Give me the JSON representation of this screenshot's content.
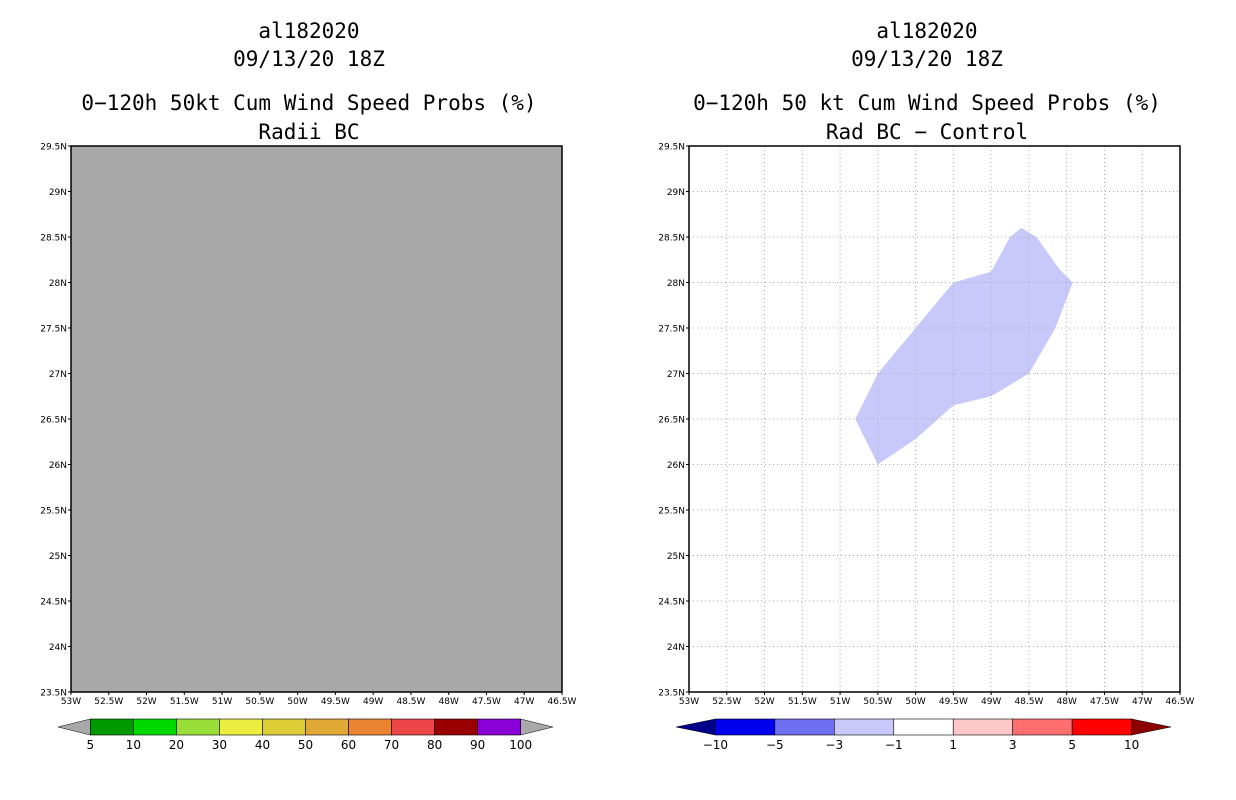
{
  "left_panel": {
    "title_storm": "al182020",
    "title_date": "09/13/20 18Z",
    "title_product": "0−120h 50kt Cum Wind Speed Probs (%)",
    "title_sub": "Radii BC",
    "y_ticks": [
      "29.5N",
      "29N",
      "28.5N",
      "28N",
      "27.5N",
      "27N",
      "26.5N",
      "26N",
      "25.5N",
      "25N",
      "24.5N",
      "24N",
      "23.5N"
    ],
    "x_ticks": [
      "53W",
      "52.5W",
      "52W",
      "51.5W",
      "51W",
      "50.5W",
      "50W",
      "49.5W",
      "49W",
      "48.5W",
      "48W",
      "47.5W",
      "47W",
      "46.5W"
    ],
    "plot_color": "#a9a9a9",
    "legend": {
      "colors": [
        "#009a00",
        "#00d900",
        "#9ade3a",
        "#eded40",
        "#dccc35",
        "#e0a835",
        "#ec8330",
        "#ee4548",
        "#9b0000",
        "#8a00d8"
      ],
      "labels": [
        "5",
        "10",
        "20",
        "30",
        "40",
        "50",
        "60",
        "70",
        "80",
        "90",
        "100"
      ],
      "low_color": "#a9a9a9",
      "high_color": "#a9a9a9"
    }
  },
  "right_panel": {
    "title_storm": "al182020",
    "title_date": "09/13/20 18Z",
    "title_product": "0−120h 50 kt Cum Wind Speed Probs (%)",
    "title_sub": "Rad BC − Control",
    "y_ticks": [
      "29.5N",
      "29N",
      "28.5N",
      "28N",
      "27.5N",
      "27N",
      "26.5N",
      "26N",
      "25.5N",
      "25N",
      "24.5N",
      "24N",
      "23.5N"
    ],
    "x_ticks": [
      "53W",
      "52.5W",
      "52W",
      "51.5W",
      "51W",
      "50.5W",
      "50W",
      "49.5W",
      "49W",
      "48.5W",
      "48W",
      "47.5W",
      "47W",
      "46.5W"
    ],
    "region": {
      "color": "#c8c8fa",
      "points": [
        [
          -50.8,
          26.5
        ],
        [
          -50.5,
          27.0
        ],
        [
          -50.0,
          27.5
        ],
        [
          -49.5,
          28.0
        ],
        [
          -49.0,
          28.12
        ],
        [
          -48.75,
          28.5
        ],
        [
          -48.6,
          28.6
        ],
        [
          -48.4,
          28.5
        ],
        [
          -48.1,
          28.15
        ],
        [
          -47.92,
          28.0
        ],
        [
          -48.15,
          27.5
        ],
        [
          -48.5,
          27.0
        ],
        [
          -49.0,
          26.75
        ],
        [
          -49.5,
          26.65
        ],
        [
          -50.0,
          26.28
        ],
        [
          -50.5,
          26.0
        ]
      ]
    },
    "legend": {
      "colors": [
        "#0000ee",
        "#6e6ef0",
        "#c8c8fa",
        "#ffffff",
        "#ffc8c8",
        "#ff6e6e",
        "#ff0000"
      ],
      "labels": [
        "−10",
        "−5",
        "−3",
        "−1",
        "1",
        "3",
        "5",
        "10"
      ],
      "low_color": "#00008b",
      "high_color": "#8b0000"
    }
  }
}
